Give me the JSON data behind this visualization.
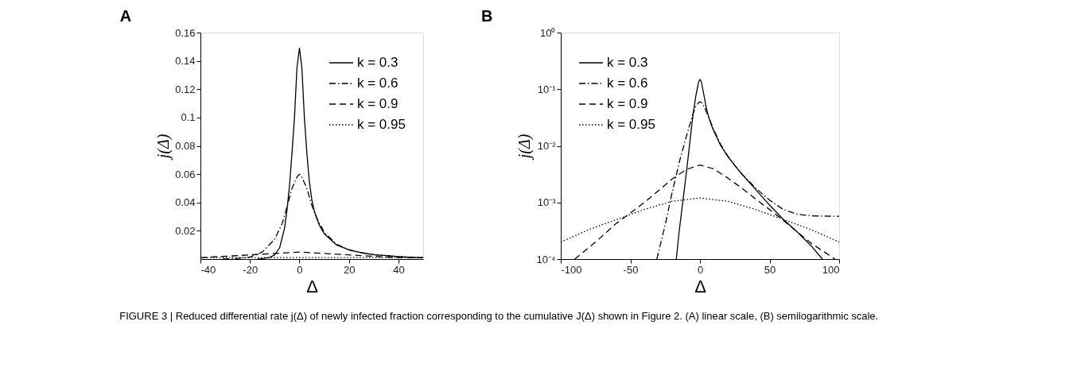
{
  "chart_data": [
    {
      "type": "line",
      "title": "A",
      "xlabel": "Δ",
      "ylabel": "j(Δ)",
      "xlim": [
        -40,
        50
      ],
      "ylim": [
        0,
        0.16
      ],
      "xticks": [
        -40,
        -20,
        0,
        20,
        40
      ],
      "yticks": [
        0.02,
        0.04,
        0.06,
        0.08,
        0.1,
        0.12,
        0.14,
        0.16
      ],
      "grid": false,
      "legend": "top right",
      "marker": "none",
      "series": [
        {
          "name": "k = 0.3",
          "color": "#000000",
          "line_style": "solid",
          "x": [
            -17,
            -15,
            -12,
            -10,
            -8,
            -6,
            -5,
            -4,
            -3,
            -2,
            -1,
            0,
            1,
            2,
            3,
            4,
            5,
            6,
            8,
            10,
            15,
            20,
            25,
            30,
            40,
            50
          ],
          "values": [
            0.0001,
            0.0003,
            0.0012,
            0.003,
            0.008,
            0.022,
            0.035,
            0.052,
            0.075,
            0.1,
            0.135,
            0.149,
            0.135,
            0.1,
            0.075,
            0.055,
            0.042,
            0.034,
            0.024,
            0.018,
            0.01,
            0.0065,
            0.0045,
            0.0032,
            0.0017,
            0.0009
          ]
        },
        {
          "name": "k = 0.6",
          "color": "#000000",
          "line_style": "dashdot",
          "x": [
            -31,
            -25,
            -20,
            -15,
            -10,
            -7,
            -5,
            -3,
            -1,
            0,
            1,
            3,
            5,
            7,
            10,
            15,
            20,
            25,
            30,
            40,
            50
          ],
          "values": [
            0.0001,
            0.0004,
            0.0015,
            0.005,
            0.014,
            0.025,
            0.037,
            0.05,
            0.058,
            0.06,
            0.058,
            0.05,
            0.038,
            0.029,
            0.019,
            0.0105,
            0.0066,
            0.0045,
            0.0032,
            0.0018,
            0.0011
          ]
        },
        {
          "name": "k = 0.9",
          "color": "#000000",
          "line_style": "dashed",
          "x": [
            -40,
            -30,
            -20,
            -10,
            0,
            10,
            20,
            30,
            40,
            50
          ],
          "values": [
            0.001,
            0.002,
            0.003,
            0.004,
            0.005,
            0.004,
            0.003,
            0.002,
            0.001,
            0.001
          ]
        },
        {
          "name": "k = 0.95",
          "color": "#000000",
          "line_style": "dotted",
          "x": [
            -40,
            -20,
            0,
            20,
            40,
            50
          ],
          "values": [
            0.001,
            0.001,
            0.001,
            0.001,
            0.001,
            0.001
          ]
        }
      ]
    },
    {
      "type": "line",
      "title": "B",
      "xlabel": "Δ",
      "ylabel": "j(Δ)",
      "xlim": [
        -100,
        100
      ],
      "ylim": [
        0.0001,
        1
      ],
      "log": "y",
      "xticks": [
        -100,
        -50,
        0,
        50,
        100
      ],
      "yticks": [
        {
          "value": 0.0001,
          "label": "10⁻⁴"
        },
        {
          "value": 0.001,
          "label": "10⁻³"
        },
        {
          "value": 0.01,
          "label": "10⁻²"
        },
        {
          "value": 0.1,
          "label": "10⁻¹"
        },
        {
          "value": 1,
          "label": "10⁰"
        }
      ],
      "grid": false,
      "legend": "top left",
      "marker": "none",
      "annotations": [
        "FIGURE 3 | Reduced differential rate j(Δ) of newly infected fraction corresponding to the cumulative J(Δ) shown in Figure 2. (A) linear scale, (B) semilogarithmic scale."
      ],
      "series": [
        {
          "name": "k = 0.3",
          "color": "#000000",
          "line_style": "solid",
          "x": [
            -17,
            -15,
            -12,
            -10,
            -8,
            -6,
            -5,
            -4,
            -3,
            -2,
            -1,
            0,
            1,
            2,
            3,
            4,
            5,
            6,
            8,
            10,
            15,
            20,
            25,
            30,
            40,
            50,
            60,
            70,
            80,
            88
          ],
          "values": [
            0.0001,
            0.0003,
            0.0012,
            0.003,
            0.008,
            0.022,
            0.035,
            0.052,
            0.075,
            0.1,
            0.135,
            0.149,
            0.135,
            0.1,
            0.075,
            0.055,
            0.042,
            0.034,
            0.024,
            0.018,
            0.01,
            0.0065,
            0.0045,
            0.0032,
            0.0017,
            0.0009,
            0.0005,
            0.0003,
            0.00017,
            0.0001
          ]
        },
        {
          "name": "k = 0.6",
          "color": "#000000",
          "line_style": "dashdot",
          "x": [
            -31,
            -25,
            -20,
            -15,
            -10,
            -7,
            -5,
            -3,
            -1,
            0,
            1,
            3,
            5,
            7,
            10,
            15,
            20,
            25,
            30,
            40,
            50,
            60,
            70,
            80,
            100
          ],
          "values": [
            0.0001,
            0.0004,
            0.0015,
            0.005,
            0.014,
            0.025,
            0.037,
            0.05,
            0.058,
            0.06,
            0.058,
            0.05,
            0.038,
            0.029,
            0.019,
            0.0105,
            0.0066,
            0.0045,
            0.0032,
            0.0018,
            0.0011,
            0.00075,
            0.00062,
            0.00058,
            0.00057
          ]
        },
        {
          "name": "k = 0.9",
          "color": "#000000",
          "line_style": "dashed",
          "x": [
            -90,
            -75,
            -60,
            -50,
            -40,
            -30,
            -20,
            -10,
            0,
            10,
            20,
            30,
            40,
            50,
            60,
            70,
            80,
            90,
            97
          ],
          "values": [
            0.0001,
            0.0002,
            0.00043,
            0.00065,
            0.001,
            0.0016,
            0.0026,
            0.0038,
            0.0046,
            0.0039,
            0.0027,
            0.0018,
            0.00115,
            0.00075,
            0.00048,
            0.0003,
            0.00019,
            0.00013,
            0.0001
          ]
        },
        {
          "name": "k = 0.95",
          "color": "#000000",
          "line_style": "dotted",
          "x": [
            -100,
            -80,
            -60,
            -40,
            -20,
            0,
            20,
            40,
            60,
            80,
            100
          ],
          "values": [
            0.0002,
            0.00033,
            0.0005,
            0.00075,
            0.00105,
            0.0012,
            0.00105,
            0.00075,
            0.0005,
            0.00033,
            0.0002
          ]
        }
      ]
    }
  ]
}
